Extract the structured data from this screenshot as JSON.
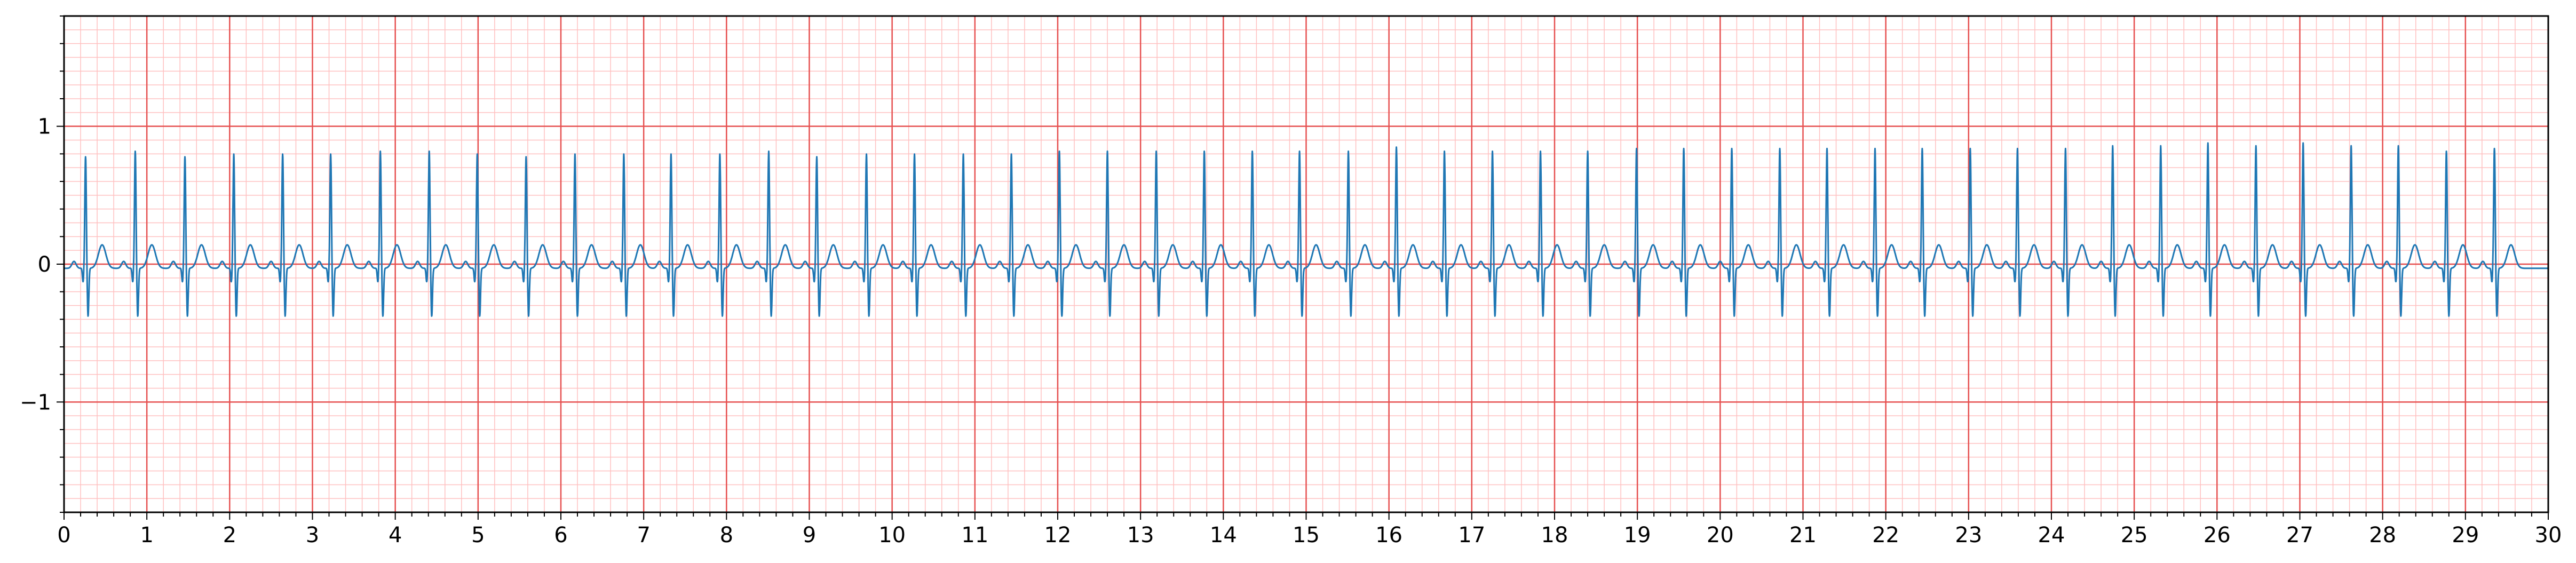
{
  "chart_data": {
    "type": "line",
    "title": "",
    "xlabel": "",
    "ylabel": "",
    "xlim": [
      0,
      30
    ],
    "ylim": [
      -1.8,
      1.8
    ],
    "x_ticks": [
      0,
      1,
      2,
      3,
      4,
      5,
      6,
      7,
      8,
      9,
      10,
      11,
      12,
      13,
      14,
      15,
      16,
      17,
      18,
      19,
      20,
      21,
      22,
      23,
      24,
      25,
      26,
      27,
      28,
      29,
      30
    ],
    "x_tick_labels": [
      "0",
      "1",
      "2",
      "3",
      "4",
      "5",
      "6",
      "7",
      "8",
      "9",
      "10",
      "11",
      "12",
      "13",
      "14",
      "15",
      "16",
      "17",
      "18",
      "19",
      "20",
      "21",
      "22",
      "23",
      "24",
      "25",
      "26",
      "27",
      "28",
      "29",
      "30"
    ],
    "y_ticks": [
      -1,
      0,
      1
    ],
    "y_tick_labels": [
      "−1",
      "0",
      "1"
    ],
    "grid": {
      "major": true,
      "minor": true,
      "major_x_step": 1,
      "minor_x_step": 0.2,
      "major_y_step": 1,
      "minor_y_step": 0.1
    },
    "legend": "none",
    "colors": {
      "trace": "#1f77b4",
      "major_grid": "#e65050",
      "minor_grid": "#ffc0c0",
      "axes": "#000000"
    },
    "series": [
      {
        "beat_times": [
          0.26,
          0.86,
          1.46,
          2.05,
          2.64,
          3.22,
          3.82,
          4.41,
          4.99,
          5.58,
          6.17,
          6.76,
          7.33,
          7.92,
          8.51,
          9.09,
          9.69,
          10.27,
          10.86,
          11.44,
          12.02,
          12.6,
          13.19,
          13.77,
          14.35,
          14.92,
          15.51,
          16.09,
          16.67,
          17.25,
          17.83,
          18.4,
          18.99,
          19.56,
          20.14,
          20.72,
          21.29,
          21.87,
          22.44,
          23.02,
          23.59,
          24.17,
          24.74,
          25.32,
          25.89,
          26.47,
          27.04,
          27.62,
          28.19,
          28.77,
          29.35
        ],
        "r_peak_amplitudes": [
          0.78,
          0.82,
          0.78,
          0.8,
          0.8,
          0.8,
          0.82,
          0.82,
          0.8,
          0.78,
          0.8,
          0.8,
          0.8,
          0.8,
          0.82,
          0.78,
          0.8,
          0.8,
          0.8,
          0.8,
          0.82,
          0.82,
          0.82,
          0.82,
          0.82,
          0.82,
          0.82,
          0.85,
          0.82,
          0.82,
          0.82,
          0.82,
          0.84,
          0.84,
          0.84,
          0.84,
          0.84,
          0.84,
          0.84,
          0.84,
          0.84,
          0.84,
          0.86,
          0.86,
          0.88,
          0.86,
          0.88,
          0.86,
          0.86,
          0.82,
          0.84
        ],
        "baseline": -0.03,
        "s_wave_depth": -0.38,
        "t_wave_amplitude": 0.17
      }
    ]
  }
}
